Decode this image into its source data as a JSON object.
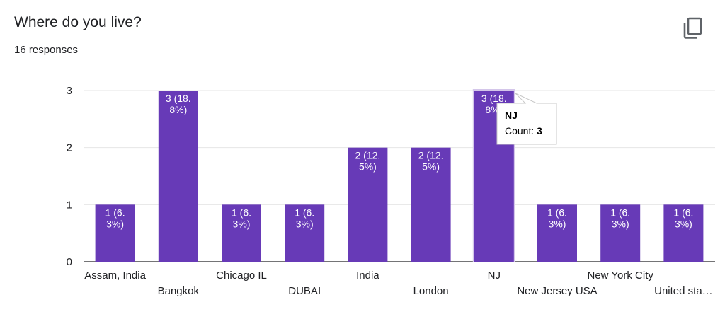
{
  "header": {
    "title": "Where do you live?",
    "responses": "16 responses",
    "copy_icon": "copy-icon"
  },
  "colors": {
    "bar": "#673ab7",
    "grid": "#e6e6e6",
    "axis": "#202124"
  },
  "chart_data": {
    "type": "bar",
    "categories": [
      "Assam, India",
      "Bangkok",
      "Chicago IL",
      "DUBAI",
      "India",
      "London",
      "NJ",
      "New Jersey USA",
      "New York City",
      "United sta…"
    ],
    "values": [
      1,
      3,
      1,
      1,
      2,
      2,
      3,
      1,
      1,
      1
    ],
    "data_labels": [
      [
        "1 (6.",
        "3%)"
      ],
      [
        "3 (18.",
        "8%)"
      ],
      [
        "1 (6.",
        "3%)"
      ],
      [
        "1 (6.",
        "3%)"
      ],
      [
        "2 (12.",
        "5%)"
      ],
      [
        "2 (12.",
        "5%)"
      ],
      [
        "3 (18.",
        "8%)"
      ],
      [
        "1 (6.",
        "3%)"
      ],
      [
        "1 (6.",
        "3%)"
      ],
      [
        "1 (6.",
        "3%)"
      ]
    ],
    "yticks": [
      0,
      1,
      2,
      3
    ],
    "ylim": [
      0,
      3
    ],
    "grid": true,
    "tooltip": {
      "category": "NJ",
      "label": "Count: ",
      "value": "3"
    }
  }
}
